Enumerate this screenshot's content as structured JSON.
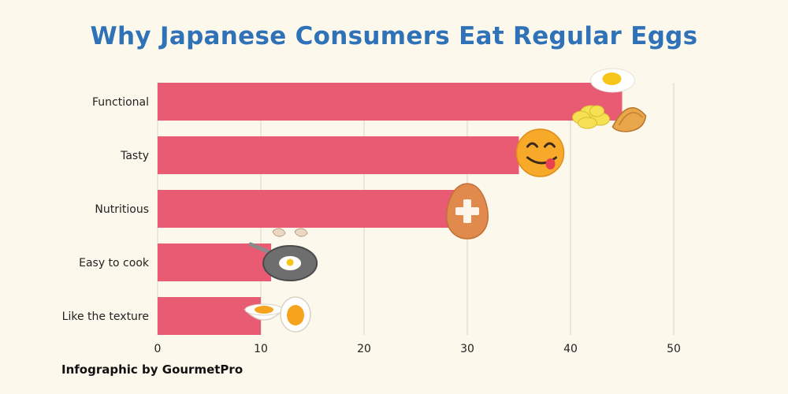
{
  "title": "Why Japanese Consumers Eat Regular Eggs",
  "credit": "Infographic by GourmetPro",
  "colors": {
    "bar": "#e85b72",
    "title": "#2f72b8",
    "background": "#fdf8ec",
    "grid": "#d9d4c8"
  },
  "chart_data": {
    "type": "bar",
    "orientation": "horizontal",
    "title": "Why Japanese Consumers Eat Regular Eggs",
    "categories": [
      "Functional",
      "Tasty",
      "Nutritious",
      "Easy to cook",
      "Like the texture"
    ],
    "values": [
      45,
      35,
      30,
      11,
      10
    ],
    "xlim": [
      0,
      50
    ],
    "xticks": [
      0,
      10,
      20,
      30,
      40,
      50
    ],
    "grid": "vertical",
    "legend": "none"
  },
  "decorations": [
    {
      "category": "Functional",
      "icon": "fried-egg-scrambled-omelette-icon"
    },
    {
      "category": "Tasty",
      "icon": "smiling-face-tongue-icon"
    },
    {
      "category": "Nutritious",
      "icon": "egg-with-plus-icon"
    },
    {
      "category": "Easy to cook",
      "icon": "frying-pan-egg-icon"
    },
    {
      "category": "Like the texture",
      "icon": "boiled-egg-halves-icon"
    }
  ]
}
